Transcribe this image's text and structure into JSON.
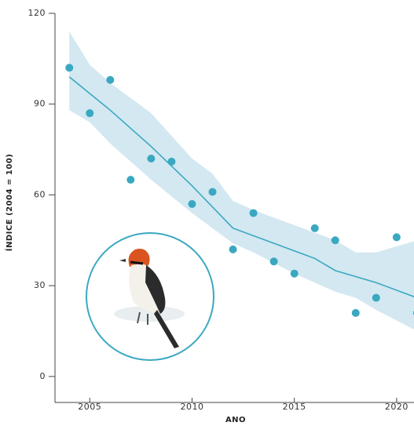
{
  "chart_data": {
    "type": "scatter",
    "x_label": "ANO",
    "y_label": "ÍNDICE (2004 = 100)",
    "xlim": [
      2003.3,
      2020.85
    ],
    "xticks": [
      2005,
      2010,
      2015,
      2020
    ],
    "ylim": [
      -6,
      120
    ],
    "yticks": [
      0,
      30,
      60,
      90,
      120
    ],
    "points": {
      "color": "#3aa8c1",
      "x": [
        2004,
        2005,
        2006,
        2007,
        2008,
        2009,
        2010,
        2011,
        2012,
        2013,
        2014,
        2015,
        2016,
        2017,
        2018,
        2019,
        2020,
        2021
      ],
      "values": [
        102,
        87,
        98,
        65,
        72,
        71,
        57,
        61,
        42,
        54,
        38,
        34,
        49,
        45,
        21,
        26,
        46,
        21
      ]
    },
    "trend": {
      "color": "#3aa8c1",
      "x": [
        2004,
        2006,
        2008,
        2010,
        2012,
        2014,
        2016,
        2017,
        2019,
        2021
      ],
      "values": [
        99,
        88,
        76,
        63,
        49,
        44,
        39,
        35,
        31,
        26
      ]
    },
    "band": {
      "color": "#d3e8f1",
      "x": [
        2004,
        2005,
        2006,
        2008,
        2010,
        2011,
        2012,
        2013,
        2015,
        2017,
        2018,
        2019,
        2021
      ],
      "upper": [
        114,
        103,
        97,
        87,
        72,
        67,
        58,
        55,
        50,
        45,
        41,
        41,
        45
      ],
      "lower": [
        88,
        84,
        77,
        65,
        54,
        49,
        44,
        41,
        34,
        28,
        26,
        22,
        15
      ]
    }
  }
}
